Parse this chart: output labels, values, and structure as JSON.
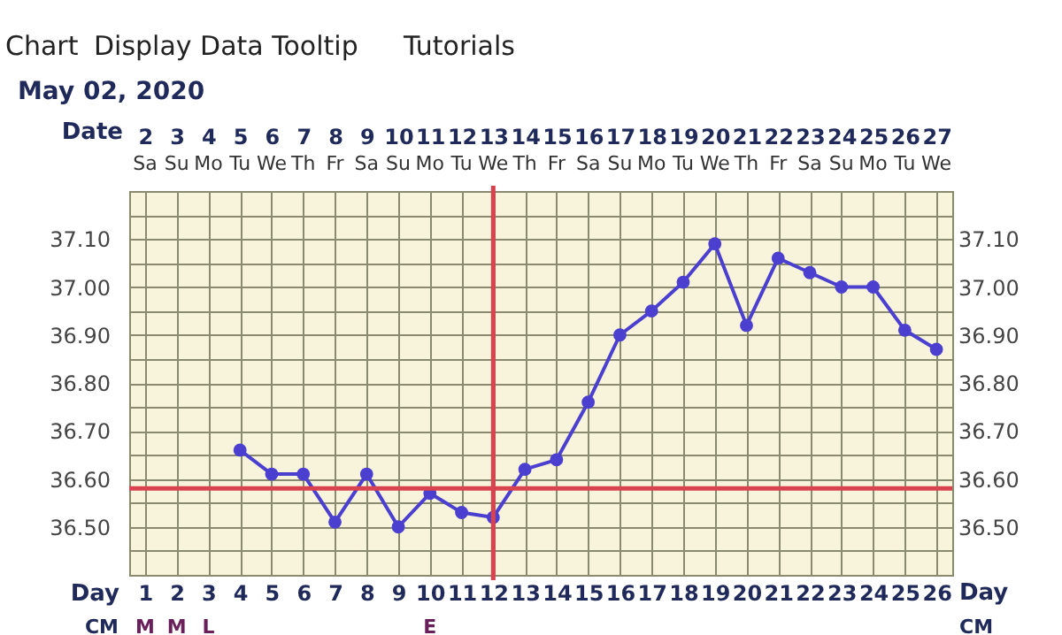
{
  "chart_data": {
    "type": "line",
    "title": "May 02, 2020",
    "xlabel": "Day",
    "x2label": "Date",
    "x": [
      4,
      5,
      6,
      7,
      8,
      9,
      10,
      11,
      12,
      13,
      14,
      15,
      16,
      17,
      18,
      19,
      20,
      21,
      22,
      23,
      24,
      25,
      26
    ],
    "series": [
      {
        "color": "#4b3fcf",
        "values": [
          36.66,
          36.61,
          36.61,
          36.51,
          36.61,
          36.5,
          36.57,
          36.53,
          36.52,
          36.62,
          36.64,
          36.76,
          36.9,
          36.95,
          37.01,
          37.09,
          36.92,
          37.06,
          37.03,
          37.0,
          37.0,
          36.91,
          36.87
        ]
      }
    ],
    "xlim": [
      0.5,
      26.5
    ],
    "xticks": [
      1,
      2,
      3,
      4,
      5,
      6,
      7,
      8,
      9,
      10,
      11,
      12,
      13,
      14,
      15,
      16,
      17,
      18,
      19,
      20,
      21,
      22,
      23,
      24,
      25,
      26
    ],
    "x2lim": [
      1.5,
      27.5
    ],
    "x2ticks": [
      2,
      3,
      4,
      5,
      6,
      7,
      8,
      9,
      10,
      11,
      12,
      13,
      14,
      15,
      16,
      17,
      18,
      19,
      20,
      21,
      22,
      23,
      24,
      25,
      26,
      27
    ],
    "ylim": [
      36.4,
      37.2
    ],
    "yticks": [
      {
        "value": 36.4,
        "label": null
      },
      {
        "value": 36.45,
        "label": null
      },
      {
        "value": 36.5,
        "label": "36.50"
      },
      {
        "value": 36.55,
        "label": null
      },
      {
        "value": 36.6,
        "label": "36.60"
      },
      {
        "value": 36.65,
        "label": null
      },
      {
        "value": 36.7,
        "label": "36.70"
      },
      {
        "value": 36.75,
        "label": null
      },
      {
        "value": 36.8,
        "label": "36.80"
      },
      {
        "value": 36.85,
        "label": null
      },
      {
        "value": 36.9,
        "label": "36.90"
      },
      {
        "value": 36.95,
        "label": null
      },
      {
        "value": 37.0,
        "label": "37.00"
      },
      {
        "value": 37.05,
        "label": null
      },
      {
        "value": 37.1,
        "label": "37.10"
      },
      {
        "value": 37.15,
        "label": null
      },
      {
        "value": 37.2,
        "label": null
      }
    ],
    "y2lim": [
      36.4,
      37.2
    ],
    "y2ticks": [
      {
        "value": 36.4,
        "label": null
      },
      {
        "value": 36.45,
        "label": null
      },
      {
        "value": 36.5,
        "label": "36.50"
      },
      {
        "value": 36.55,
        "label": null
      },
      {
        "value": 36.6,
        "label": "36.60"
      },
      {
        "value": 36.65,
        "label": null
      },
      {
        "value": 36.7,
        "label": "36.70"
      },
      {
        "value": 36.75,
        "label": null
      },
      {
        "value": 36.8,
        "label": "36.80"
      },
      {
        "value": 36.85,
        "label": null
      },
      {
        "value": 36.9,
        "label": "36.90"
      },
      {
        "value": 36.95,
        "label": null
      },
      {
        "value": 37.0,
        "label": "37.00"
      },
      {
        "value": 37.05,
        "label": null
      },
      {
        "value": 37.1,
        "label": "37.10"
      },
      {
        "value": 37.15,
        "label": null
      },
      {
        "value": 37.2,
        "label": null
      }
    ],
    "ref_lines": [
      {
        "axis": "y",
        "value": 36.58,
        "color": "#d9434f"
      },
      {
        "axis": "x",
        "value": 12,
        "color": "#d9434f"
      }
    ],
    "annotations": [
      "Chart",
      "Display Data Tooltip",
      "Tutorials",
      "CM",
      "Sa",
      "Su",
      "Mo",
      "Tu",
      "We",
      "Th",
      "Fr",
      "Sa",
      "Su",
      "Mo",
      "Tu",
      "We",
      "Th",
      "Fr",
      "Sa",
      "Su",
      "Mo",
      "Tu",
      "We",
      "Th",
      "Fr",
      "Sa",
      "Su",
      "Mo",
      "Tu",
      "We",
      "M",
      "M",
      "L",
      "E"
    ],
    "grid": true,
    "marker": "circle",
    "line_style": "solid"
  }
}
